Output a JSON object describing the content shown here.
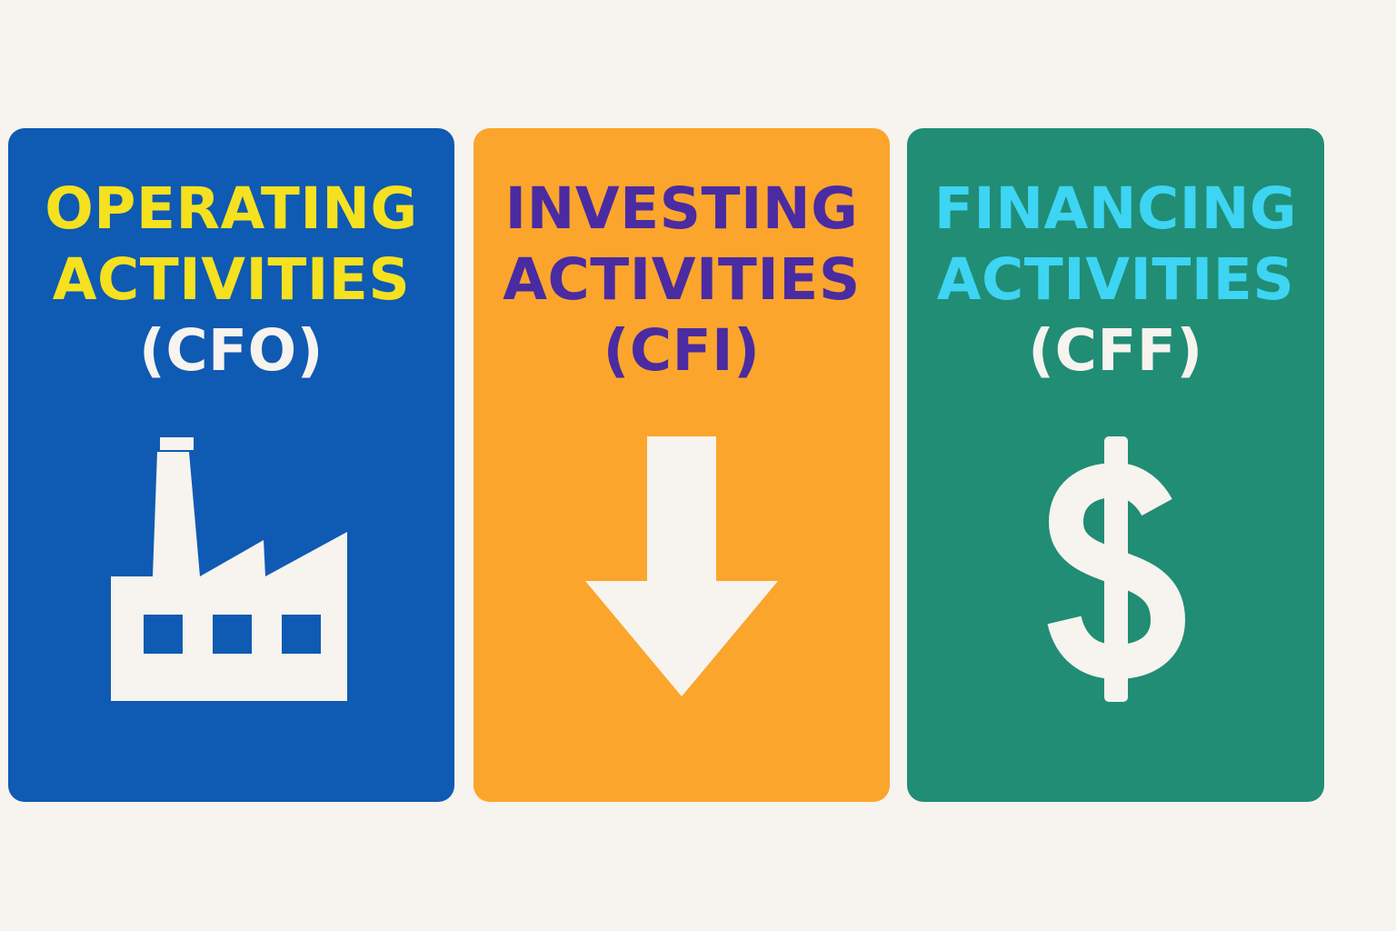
{
  "cards": [
    {
      "line1": "OPERATING",
      "line2": "ACTIVITIES",
      "line3": "(CFO)",
      "icon": "factory-icon",
      "bg": "#0f5ab3",
      "title_color": "#f5e11f",
      "abbr_color": "#f7f3ee"
    },
    {
      "line1": "INVESTING",
      "line2": "ACTIVITIES",
      "line3": "(CFI)",
      "icon": "arrow-down-icon",
      "bg": "#fba52c",
      "title_color": "#4a2ba1",
      "abbr_color": "#4a2ba1"
    },
    {
      "line1": "FINANCING",
      "line2": "ACTIVITIES",
      "line3": "(CFF)",
      "icon": "dollar-sign-icon",
      "bg": "#218d75",
      "title_color": "#3dd5f3",
      "abbr_color": "#f7f3ee"
    }
  ],
  "colors": {
    "background": "#f7f3ee",
    "icon_fill": "#f7f3ee"
  }
}
